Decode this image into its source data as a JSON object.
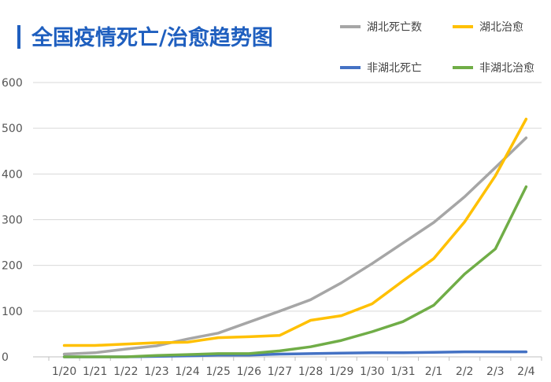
{
  "chart_data": {
    "type": "line",
    "title": "全国疫情死亡/治愈趋势图",
    "xlabel": "",
    "ylabel": "",
    "x": [
      "1/20",
      "1/21",
      "1/22",
      "1/23",
      "1/24",
      "1/25",
      "1/26",
      "1/27",
      "1/28",
      "1/29",
      "1/30",
      "1/31",
      "2/1",
      "2/2",
      "2/3",
      "2/4"
    ],
    "ylim": [
      0,
      600
    ],
    "yticks": [
      "0",
      "100",
      "200",
      "300",
      "400",
      "500",
      "600"
    ],
    "grid": true,
    "legend_position": "top-right",
    "series": [
      {
        "name": "湖北死亡数",
        "color": "#a6a6a6",
        "values": [
          6,
          9,
          17,
          24,
          39,
          52,
          76,
          100,
          125,
          162,
          204,
          249,
          294,
          350,
          414,
          479
        ]
      },
      {
        "name": "湖北治愈",
        "color": "#ffc000",
        "values": [
          25,
          25,
          28,
          31,
          32,
          42,
          44,
          47,
          80,
          90,
          116,
          166,
          215,
          295,
          396,
          520
        ]
      },
      {
        "name": "非湖北死亡",
        "color": "#4472c4",
        "values": [
          0,
          0,
          0,
          1,
          2,
          4,
          4,
          6,
          7,
          8,
          9,
          9,
          10,
          11,
          11,
          11
        ]
      },
      {
        "name": "非湖北治愈",
        "color": "#70ad47",
        "values": [
          0,
          0,
          0,
          3,
          5,
          7,
          7,
          13,
          22,
          36,
          55,
          77,
          113,
          181,
          236,
          372
        ]
      }
    ]
  }
}
